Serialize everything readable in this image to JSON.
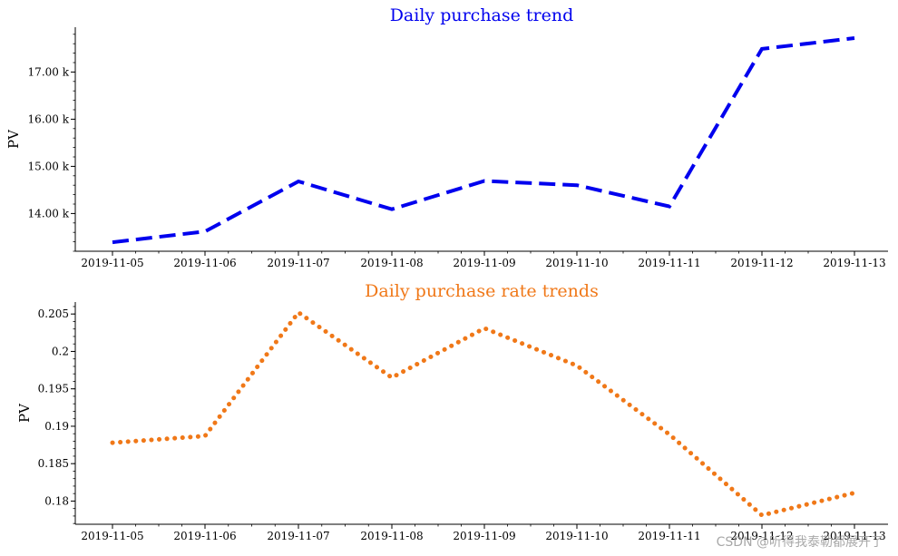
{
  "chart_data": [
    {
      "type": "line",
      "title": "Daily purchase trend",
      "xlabel": "",
      "ylabel": "PV",
      "color": "#0000ee",
      "line_style": "dashed",
      "x": [
        "2019-11-05",
        "2019-11-06",
        "2019-11-07",
        "2019-11-08",
        "2019-11-09",
        "2019-11-10",
        "2019-11-11",
        "2019-11-12",
        "2019-11-13"
      ],
      "values": [
        13390,
        13620,
        14680,
        14090,
        14690,
        14600,
        14150,
        17490,
        17720
      ],
      "ylim": [
        13200,
        17950
      ],
      "yticks": [
        14000,
        15000,
        16000,
        17000
      ],
      "ytick_labels": [
        "14.00 k",
        "15.00 k",
        "16.00 k",
        "17.00 k"
      ],
      "grid": false,
      "legend": "none"
    },
    {
      "type": "line",
      "title": "Daily purchase rate trends",
      "xlabel": "",
      "ylabel": "PV",
      "color": "#f07818",
      "line_style": "dotted",
      "x": [
        "2019-11-05",
        "2019-11-06",
        "2019-11-07",
        "2019-11-08",
        "2019-11-09",
        "2019-11-10",
        "2019-11-11",
        "2019-11-12",
        "2019-11-13"
      ],
      "values": [
        0.1878,
        0.1887,
        0.2052,
        0.1965,
        0.2031,
        0.1981,
        0.1889,
        0.1781,
        0.1811
      ],
      "ylim": [
        0.1769,
        0.2066
      ],
      "yticks": [
        0.18,
        0.185,
        0.19,
        0.195,
        0.2,
        0.205
      ],
      "ytick_labels": [
        "0.18",
        "0.185",
        "0.19",
        "0.195",
        "0.2",
        "0.205"
      ],
      "grid": false,
      "legend": "none"
    }
  ],
  "watermark": "CSDN @听得我泰勒都展开了"
}
